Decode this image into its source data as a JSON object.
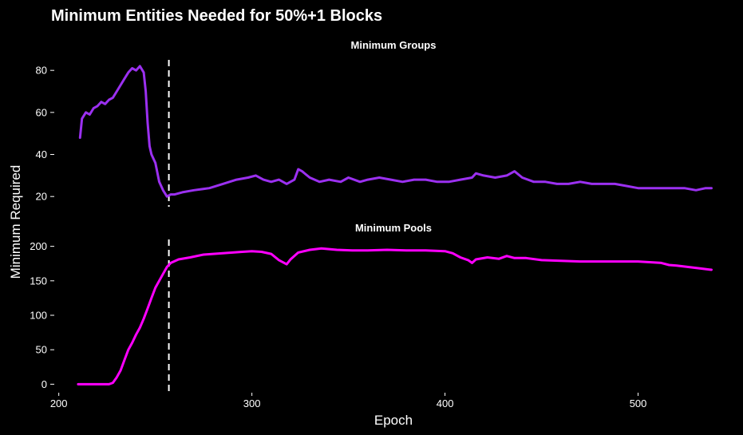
{
  "title": "Minimum Entities Needed for 50%+1 Blocks",
  "xlabel": "Epoch",
  "ylabel": "Minimum Required",
  "colors": {
    "background": "#000000",
    "text": "#ffffff",
    "groups": "#9b30f0",
    "pools": "#ff00ff",
    "reference_line": "#ffffff"
  },
  "chart_data": [
    {
      "type": "line",
      "title": "Minimum Groups",
      "xlim": [
        196,
        544
      ],
      "ylim": [
        14,
        85
      ],
      "x_ticks": [
        200,
        300,
        400,
        500
      ],
      "y_ticks": [
        20,
        40,
        60,
        80
      ],
      "reference_line": {
        "x": 257,
        "style": "dashed"
      },
      "series": [
        {
          "color": "#9b30f0",
          "points": [
            [
              211,
              48
            ],
            [
              212,
              57
            ],
            [
              214,
              60
            ],
            [
              216,
              59
            ],
            [
              218,
              62
            ],
            [
              220,
              63
            ],
            [
              222,
              65
            ],
            [
              224,
              64
            ],
            [
              226,
              66
            ],
            [
              228,
              67
            ],
            [
              230,
              70
            ],
            [
              232,
              73
            ],
            [
              234,
              76
            ],
            [
              236,
              79
            ],
            [
              238,
              81
            ],
            [
              240,
              80
            ],
            [
              242,
              82
            ],
            [
              244,
              79
            ],
            [
              245,
              70
            ],
            [
              246,
              55
            ],
            [
              247,
              44
            ],
            [
              248,
              40
            ],
            [
              250,
              36
            ],
            [
              252,
              27
            ],
            [
              254,
              23
            ],
            [
              256,
              20
            ],
            [
              258,
              21
            ],
            [
              260,
              21
            ],
            [
              264,
              22
            ],
            [
              270,
              23
            ],
            [
              278,
              24
            ],
            [
              285,
              26
            ],
            [
              292,
              28
            ],
            [
              298,
              29
            ],
            [
              302,
              30
            ],
            [
              306,
              28
            ],
            [
              310,
              27
            ],
            [
              314,
              28
            ],
            [
              318,
              26
            ],
            [
              322,
              28
            ],
            [
              324,
              33
            ],
            [
              326,
              32
            ],
            [
              330,
              29
            ],
            [
              335,
              27
            ],
            [
              340,
              28
            ],
            [
              346,
              27
            ],
            [
              350,
              29
            ],
            [
              356,
              27
            ],
            [
              360,
              28
            ],
            [
              366,
              29
            ],
            [
              372,
              28
            ],
            [
              378,
              27
            ],
            [
              384,
              28
            ],
            [
              390,
              28
            ],
            [
              396,
              27
            ],
            [
              402,
              27
            ],
            [
              408,
              28
            ],
            [
              414,
              29
            ],
            [
              416,
              31
            ],
            [
              420,
              30
            ],
            [
              426,
              29
            ],
            [
              432,
              30
            ],
            [
              436,
              32
            ],
            [
              440,
              29
            ],
            [
              446,
              27
            ],
            [
              452,
              27
            ],
            [
              458,
              26
            ],
            [
              464,
              26
            ],
            [
              470,
              27
            ],
            [
              476,
              26
            ],
            [
              482,
              26
            ],
            [
              488,
              26
            ],
            [
              494,
              25
            ],
            [
              500,
              24
            ],
            [
              506,
              24
            ],
            [
              512,
              24
            ],
            [
              518,
              24
            ],
            [
              524,
              24
            ],
            [
              530,
              23
            ],
            [
              535,
              24
            ],
            [
              538,
              24
            ]
          ]
        }
      ]
    },
    {
      "type": "line",
      "title": "Minimum Pools",
      "xlim": [
        196,
        544
      ],
      "ylim": [
        -10,
        210
      ],
      "x_ticks": [
        200,
        300,
        400,
        500
      ],
      "y_ticks": [
        0,
        50,
        100,
        150,
        200
      ],
      "reference_line": {
        "x": 257,
        "style": "dashed"
      },
      "series": [
        {
          "color": "#ff00ff",
          "points": [
            [
              210,
              0
            ],
            [
              218,
              0
            ],
            [
              226,
              0
            ],
            [
              228,
              2
            ],
            [
              230,
              10
            ],
            [
              232,
              20
            ],
            [
              234,
              35
            ],
            [
              236,
              50
            ],
            [
              238,
              60
            ],
            [
              240,
              72
            ],
            [
              242,
              82
            ],
            [
              244,
              95
            ],
            [
              246,
              110
            ],
            [
              248,
              125
            ],
            [
              250,
              140
            ],
            [
              252,
              150
            ],
            [
              254,
              160
            ],
            [
              256,
              170
            ],
            [
              258,
              176
            ],
            [
              262,
              181
            ],
            [
              268,
              184
            ],
            [
              275,
              188
            ],
            [
              285,
              190
            ],
            [
              295,
              192
            ],
            [
              300,
              193
            ],
            [
              305,
              192
            ],
            [
              310,
              189
            ],
            [
              314,
              180
            ],
            [
              318,
              174
            ],
            [
              320,
              181
            ],
            [
              324,
              191
            ],
            [
              330,
              195
            ],
            [
              336,
              197
            ],
            [
              344,
              195
            ],
            [
              352,
              194
            ],
            [
              360,
              194
            ],
            [
              370,
              195
            ],
            [
              380,
              194
            ],
            [
              390,
              194
            ],
            [
              400,
              193
            ],
            [
              404,
              190
            ],
            [
              408,
              184
            ],
            [
              412,
              180
            ],
            [
              414,
              176
            ],
            [
              416,
              181
            ],
            [
              422,
              184
            ],
            [
              428,
              182
            ],
            [
              432,
              186
            ],
            [
              436,
              183
            ],
            [
              442,
              183
            ],
            [
              450,
              180
            ],
            [
              460,
              179
            ],
            [
              470,
              178
            ],
            [
              480,
              178
            ],
            [
              490,
              178
            ],
            [
              500,
              178
            ],
            [
              506,
              177
            ],
            [
              512,
              176
            ],
            [
              516,
              173
            ],
            [
              520,
              172
            ],
            [
              526,
              170
            ],
            [
              532,
              168
            ],
            [
              538,
              166
            ]
          ]
        }
      ]
    }
  ]
}
